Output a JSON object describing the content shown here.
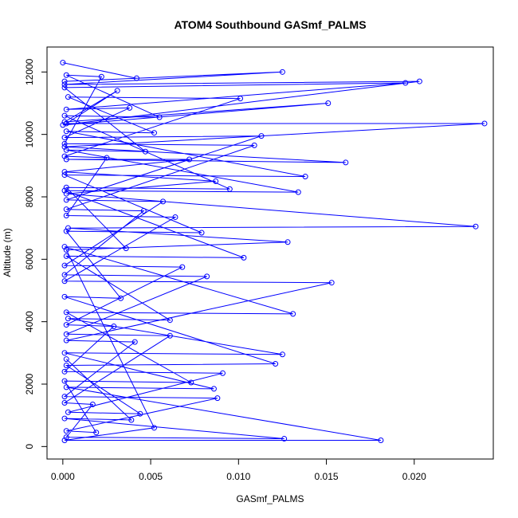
{
  "chart_data": {
    "type": "line",
    "title": "ATOM4 Southbound GASmf_PALMS",
    "xlabel": "GASmf_PALMS",
    "ylabel": "Altitude (m)",
    "xlim": [
      -0.0009,
      0.0245
    ],
    "ylim": [
      -400,
      12800
    ],
    "xticks": [
      0.0,
      0.005,
      0.01,
      0.015,
      0.02
    ],
    "xtick_labels": [
      "0.000",
      "0.005",
      "0.010",
      "0.015",
      "0.020"
    ],
    "yticks": [
      0,
      2000,
      4000,
      6000,
      8000,
      10000,
      12000
    ],
    "ytick_labels": [
      "0",
      "2000",
      "4000",
      "6000",
      "8000",
      "10000",
      "12000"
    ],
    "grid": false,
    "legend": "none",
    "marker": "open-circle",
    "line_color": "#0000ff",
    "series": [
      {
        "x": [
          0.0,
          0.0042,
          0.0001,
          0.0125,
          0.0001,
          0.0203,
          0.0,
          0.0151,
          0.0001,
          0.0031,
          0.0002,
          0.024,
          0.0001,
          0.0161,
          0.0002,
          0.0072,
          0.0001,
          0.0087,
          0.0002,
          0.0235,
          0.0003,
          0.0128,
          0.0002,
          0.0052,
          0.0001,
          0.0181,
          0.0002,
          0.0086,
          0.0001,
          0.0125,
          0.0003,
          0.0061,
          0.0002,
          0.0103,
          0.0001,
          0.0134,
          0.0002,
          0.0047,
          0.0001,
          0.0195,
          0.0002,
          0.0038,
          0.0001,
          0.0113,
          0.0002,
          0.0057,
          0.0001,
          0.0068,
          0.0002,
          0.0029,
          0.0001,
          0.0091,
          0.0003,
          0.0044,
          0.0002,
          0.0121,
          0.0001,
          0.0033,
          0.0002,
          0.0079,
          0.0001,
          0.0138,
          0.0002,
          0.0052,
          0.0003,
          0.0101,
          0.0001,
          0.0025,
          0.0002,
          0.0064,
          0.0001,
          0.0153,
          0.0002,
          0.0041,
          0.0001,
          0.0088,
          0.0002,
          0.0019,
          0.0001,
          0.0073,
          0.0002,
          0.0131,
          0.0001,
          0.0036,
          0.0002,
          0.0095,
          0.0001,
          0.0055,
          0.0002,
          0.0022,
          0.0001,
          0.0109,
          0.0002,
          0.0046,
          0.0001,
          0.0082,
          0.0002,
          0.0061,
          0.0001,
          0.0017,
          0.0002,
          0.0126,
          0.0001,
          0.0039,
          0.0002
        ],
        "y": [
          12300,
          11800,
          11700,
          12000,
          11600,
          11700,
          10300,
          11000,
          10400,
          11400,
          10350,
          10350,
          9600,
          9100,
          9200,
          9200,
          8800,
          8500,
          8100,
          7050,
          7000,
          6550,
          6300,
          600,
          200,
          200,
          1900,
          1850,
          3000,
          2950,
          4100,
          4050,
          6100,
          6050,
          8200,
          8150,
          9500,
          9450,
          11500,
          11650,
          10800,
          10850,
          9900,
          9950,
          7900,
          7850,
          5800,
          5750,
          3900,
          3850,
          2400,
          2350,
          1100,
          1050,
          2600,
          2650,
          4800,
          4750,
          6900,
          6850,
          8700,
          8650,
          10100,
          10050,
          11200,
          11150,
          9300,
          9250,
          7400,
          7350,
          5300,
          5250,
          3400,
          3350,
          1600,
          1550,
          500,
          450,
          2100,
          2050,
          4300,
          4250,
          6400,
          6350,
          8300,
          8250,
          10600,
          10550,
          11900,
          11850,
          9700,
          9650,
          7600,
          7550,
          5500,
          5450,
          3600,
          3550,
          1400,
          1350,
          300,
          250,
          900,
          850,
          2800
        ]
      }
    ]
  }
}
